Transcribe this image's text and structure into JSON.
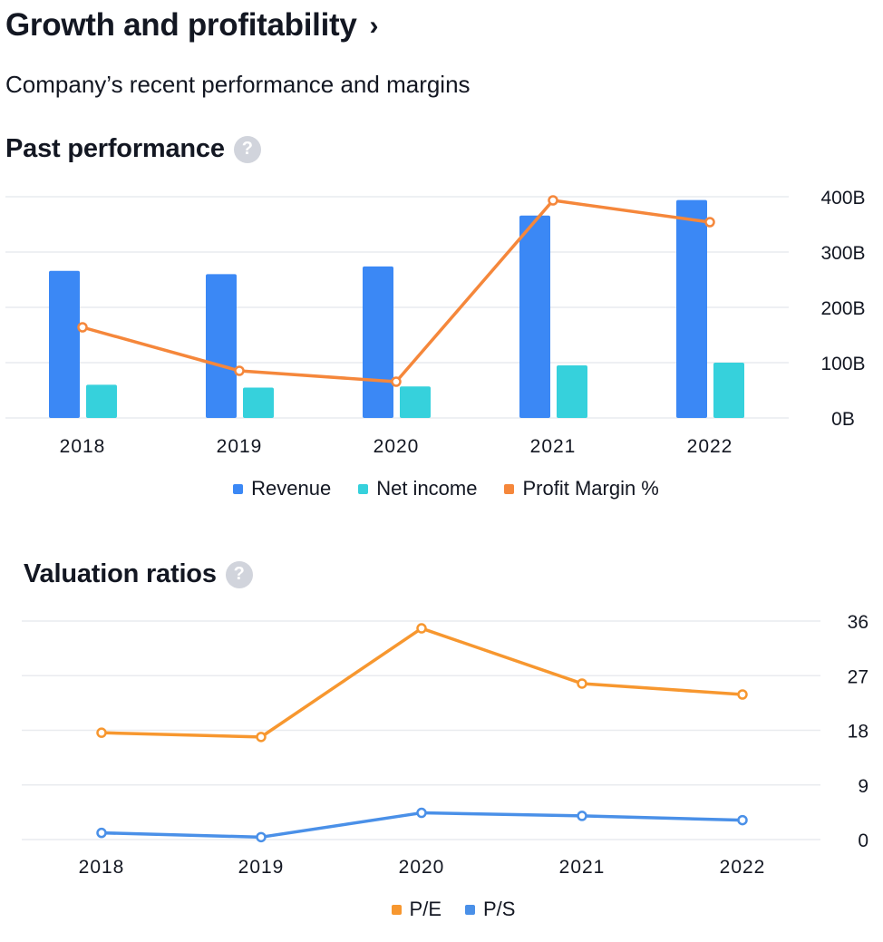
{
  "header": {
    "title": "Growth and profitability",
    "chevron": "›",
    "subtitle": "Company’s recent performance and margins"
  },
  "help_glyph": "?",
  "past_performance": {
    "heading": "Past performance",
    "legend": [
      {
        "label": "Revenue",
        "color": "#3b88f5"
      },
      {
        "label": "Net income",
        "color": "#36d1dc"
      },
      {
        "label": "Profit Margin %",
        "color": "#f5873b"
      }
    ]
  },
  "valuation": {
    "heading": "Valuation ratios",
    "legend": [
      {
        "label": "P/E",
        "color": "#f7972f"
      },
      {
        "label": "P/S",
        "color": "#4a90e8"
      }
    ]
  },
  "chart_data": [
    {
      "type": "bar",
      "title": "Past performance",
      "categories": [
        "2018",
        "2019",
        "2020",
        "2021",
        "2022"
      ],
      "y_ticks": [
        "0B",
        "100B",
        "200B",
        "300B",
        "400B"
      ],
      "ylim": [
        0,
        400
      ],
      "grid": true,
      "legend_position": "bottom",
      "series": [
        {
          "name": "Revenue",
          "type": "bar",
          "color": "#3b88f5",
          "values": [
            266,
            260,
            274,
            366,
            394
          ]
        },
        {
          "name": "Net income",
          "type": "bar",
          "color": "#36d1dc",
          "values": [
            60,
            55,
            57,
            95,
            100
          ]
        },
        {
          "name": "Profit Margin %",
          "type": "line",
          "color": "#f5873b",
          "values": [
            22.4,
            21.2,
            20.9,
            25.9,
            25.3
          ],
          "line_range": [
            19.9,
            26
          ]
        }
      ]
    },
    {
      "type": "line",
      "title": "Valuation ratios",
      "categories": [
        "2018",
        "2019",
        "2020",
        "2021",
        "2022"
      ],
      "y_ticks": [
        "0",
        "9",
        "18",
        "27",
        "36"
      ],
      "ylim": [
        0,
        36
      ],
      "grid": true,
      "legend_position": "bottom",
      "series": [
        {
          "name": "P/E",
          "color": "#f7972f",
          "values": [
            17.6,
            16.9,
            34.8,
            25.7,
            23.9
          ]
        },
        {
          "name": "P/S",
          "color": "#4a90e8",
          "values": [
            1.1,
            0.4,
            4.4,
            3.9,
            3.2
          ]
        }
      ]
    }
  ]
}
